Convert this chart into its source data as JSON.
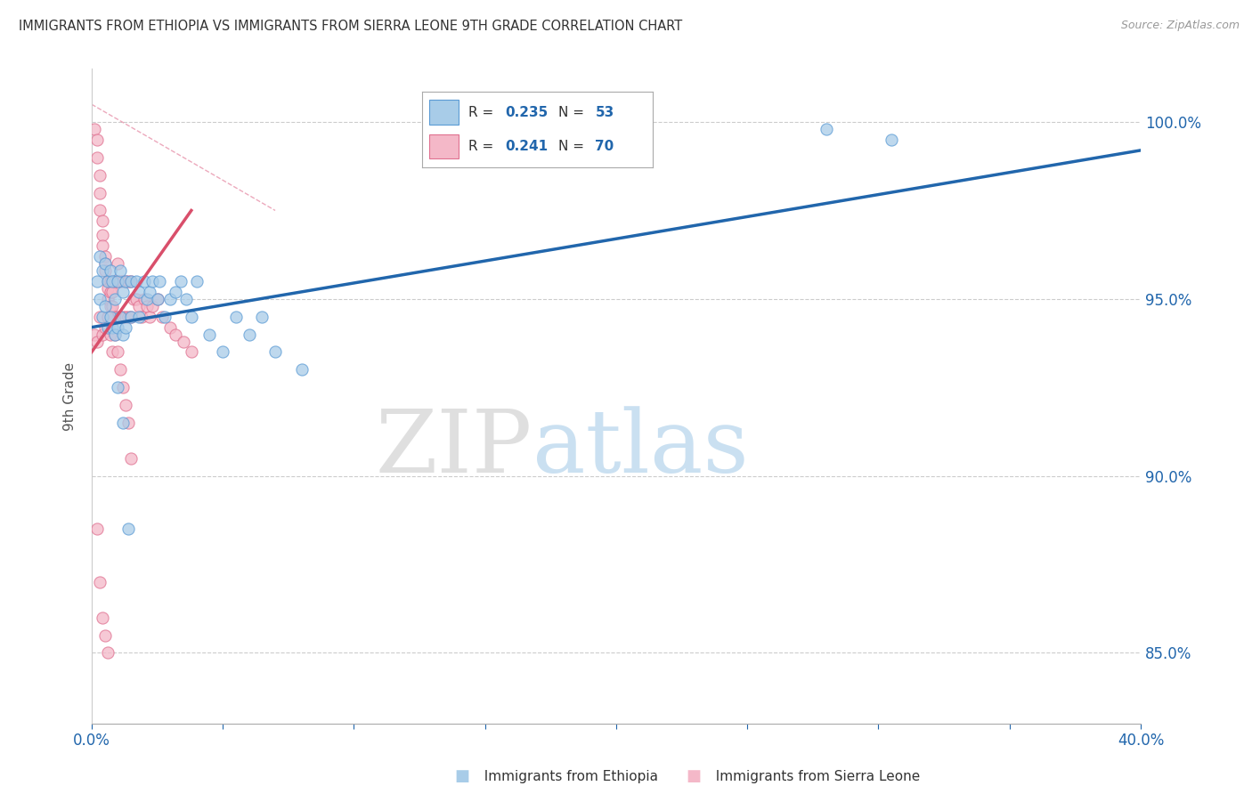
{
  "title": "IMMIGRANTS FROM ETHIOPIA VS IMMIGRANTS FROM SIERRA LEONE 9TH GRADE CORRELATION CHART",
  "source": "Source: ZipAtlas.com",
  "ylabel": "9th Grade",
  "xlim": [
    0.0,
    0.4
  ],
  "ylim": [
    83.0,
    101.5
  ],
  "xticks": [
    0.0,
    0.05,
    0.1,
    0.15,
    0.2,
    0.25,
    0.3,
    0.35,
    0.4
  ],
  "xtick_labels_show": [
    true,
    false,
    false,
    false,
    false,
    false,
    false,
    false,
    true
  ],
  "xtick_labels": [
    "0.0%",
    "",
    "",
    "",
    "",
    "",
    "",
    "",
    "40.0%"
  ],
  "yticks": [
    85.0,
    90.0,
    95.0,
    100.0
  ],
  "ytick_labels": [
    "85.0%",
    "90.0%",
    "95.0%",
    "100.0%"
  ],
  "color_blue": "#a8cce8",
  "color_pink": "#f4b8c8",
  "color_blue_edge": "#5b9bd5",
  "color_pink_edge": "#e07090",
  "color_blue_line": "#2166ac",
  "color_pink_line": "#d94f6b",
  "background_color": "#ffffff",
  "watermark_zip": "ZIP",
  "watermark_atlas": "atlas",
  "blue_scatter_x": [
    0.002,
    0.003,
    0.003,
    0.004,
    0.004,
    0.005,
    0.005,
    0.006,
    0.006,
    0.007,
    0.007,
    0.008,
    0.008,
    0.009,
    0.009,
    0.01,
    0.01,
    0.011,
    0.011,
    0.012,
    0.012,
    0.013,
    0.013,
    0.015,
    0.015,
    0.017,
    0.018,
    0.018,
    0.02,
    0.021,
    0.022,
    0.023,
    0.025,
    0.026,
    0.028,
    0.03,
    0.032,
    0.034,
    0.036,
    0.038,
    0.04,
    0.045,
    0.05,
    0.055,
    0.06,
    0.065,
    0.07,
    0.08,
    0.01,
    0.012,
    0.014,
    0.28,
    0.305
  ],
  "blue_scatter_y": [
    95.5,
    95.0,
    96.2,
    95.8,
    94.5,
    96.0,
    94.8,
    95.5,
    94.2,
    95.8,
    94.5,
    95.5,
    94.2,
    95.0,
    94.0,
    95.5,
    94.2,
    95.8,
    94.5,
    95.2,
    94.0,
    95.5,
    94.2,
    95.5,
    94.5,
    95.5,
    95.2,
    94.5,
    95.5,
    95.0,
    95.2,
    95.5,
    95.0,
    95.5,
    94.5,
    95.0,
    95.2,
    95.5,
    95.0,
    94.5,
    95.5,
    94.0,
    93.5,
    94.5,
    94.0,
    94.5,
    93.5,
    93.0,
    92.5,
    91.5,
    88.5,
    99.8,
    99.5
  ],
  "pink_scatter_x": [
    0.001,
    0.002,
    0.002,
    0.003,
    0.003,
    0.003,
    0.004,
    0.004,
    0.004,
    0.005,
    0.005,
    0.005,
    0.006,
    0.006,
    0.006,
    0.007,
    0.007,
    0.007,
    0.008,
    0.008,
    0.008,
    0.009,
    0.009,
    0.01,
    0.01,
    0.01,
    0.011,
    0.011,
    0.012,
    0.012,
    0.013,
    0.013,
    0.014,
    0.014,
    0.015,
    0.015,
    0.016,
    0.017,
    0.018,
    0.019,
    0.02,
    0.021,
    0.022,
    0.023,
    0.025,
    0.027,
    0.03,
    0.032,
    0.035,
    0.038,
    0.001,
    0.002,
    0.003,
    0.004,
    0.005,
    0.006,
    0.007,
    0.008,
    0.009,
    0.01,
    0.011,
    0.012,
    0.013,
    0.014,
    0.015,
    0.002,
    0.003,
    0.004,
    0.005,
    0.006
  ],
  "pink_scatter_y": [
    99.8,
    99.5,
    99.0,
    98.5,
    98.0,
    97.5,
    97.2,
    96.8,
    96.5,
    96.2,
    96.0,
    95.8,
    95.5,
    95.3,
    95.0,
    95.5,
    95.2,
    94.8,
    95.5,
    95.2,
    94.8,
    95.5,
    94.5,
    96.0,
    95.5,
    94.5,
    95.5,
    94.5,
    95.5,
    94.5,
    95.5,
    94.5,
    95.5,
    94.5,
    95.5,
    94.5,
    95.0,
    95.0,
    94.8,
    94.5,
    95.0,
    94.8,
    94.5,
    94.8,
    95.0,
    94.5,
    94.2,
    94.0,
    93.8,
    93.5,
    94.0,
    93.8,
    94.5,
    94.0,
    94.2,
    94.5,
    94.0,
    93.5,
    94.0,
    93.5,
    93.0,
    92.5,
    92.0,
    91.5,
    90.5,
    88.5,
    87.0,
    86.0,
    85.5,
    85.0
  ],
  "blue_line_x": [
    0.0,
    0.4
  ],
  "blue_line_y": [
    94.2,
    99.2
  ],
  "pink_line_x": [
    0.0,
    0.038
  ],
  "pink_line_y": [
    93.5,
    97.5
  ],
  "diag_line_x": [
    0.0,
    0.07
  ],
  "diag_line_y": [
    100.5,
    97.5
  ],
  "legend_r_blue": "0.235",
  "legend_n_blue": "53",
  "legend_r_pink": "0.241",
  "legend_n_pink": "70",
  "color_legend_text": "#2166ac"
}
